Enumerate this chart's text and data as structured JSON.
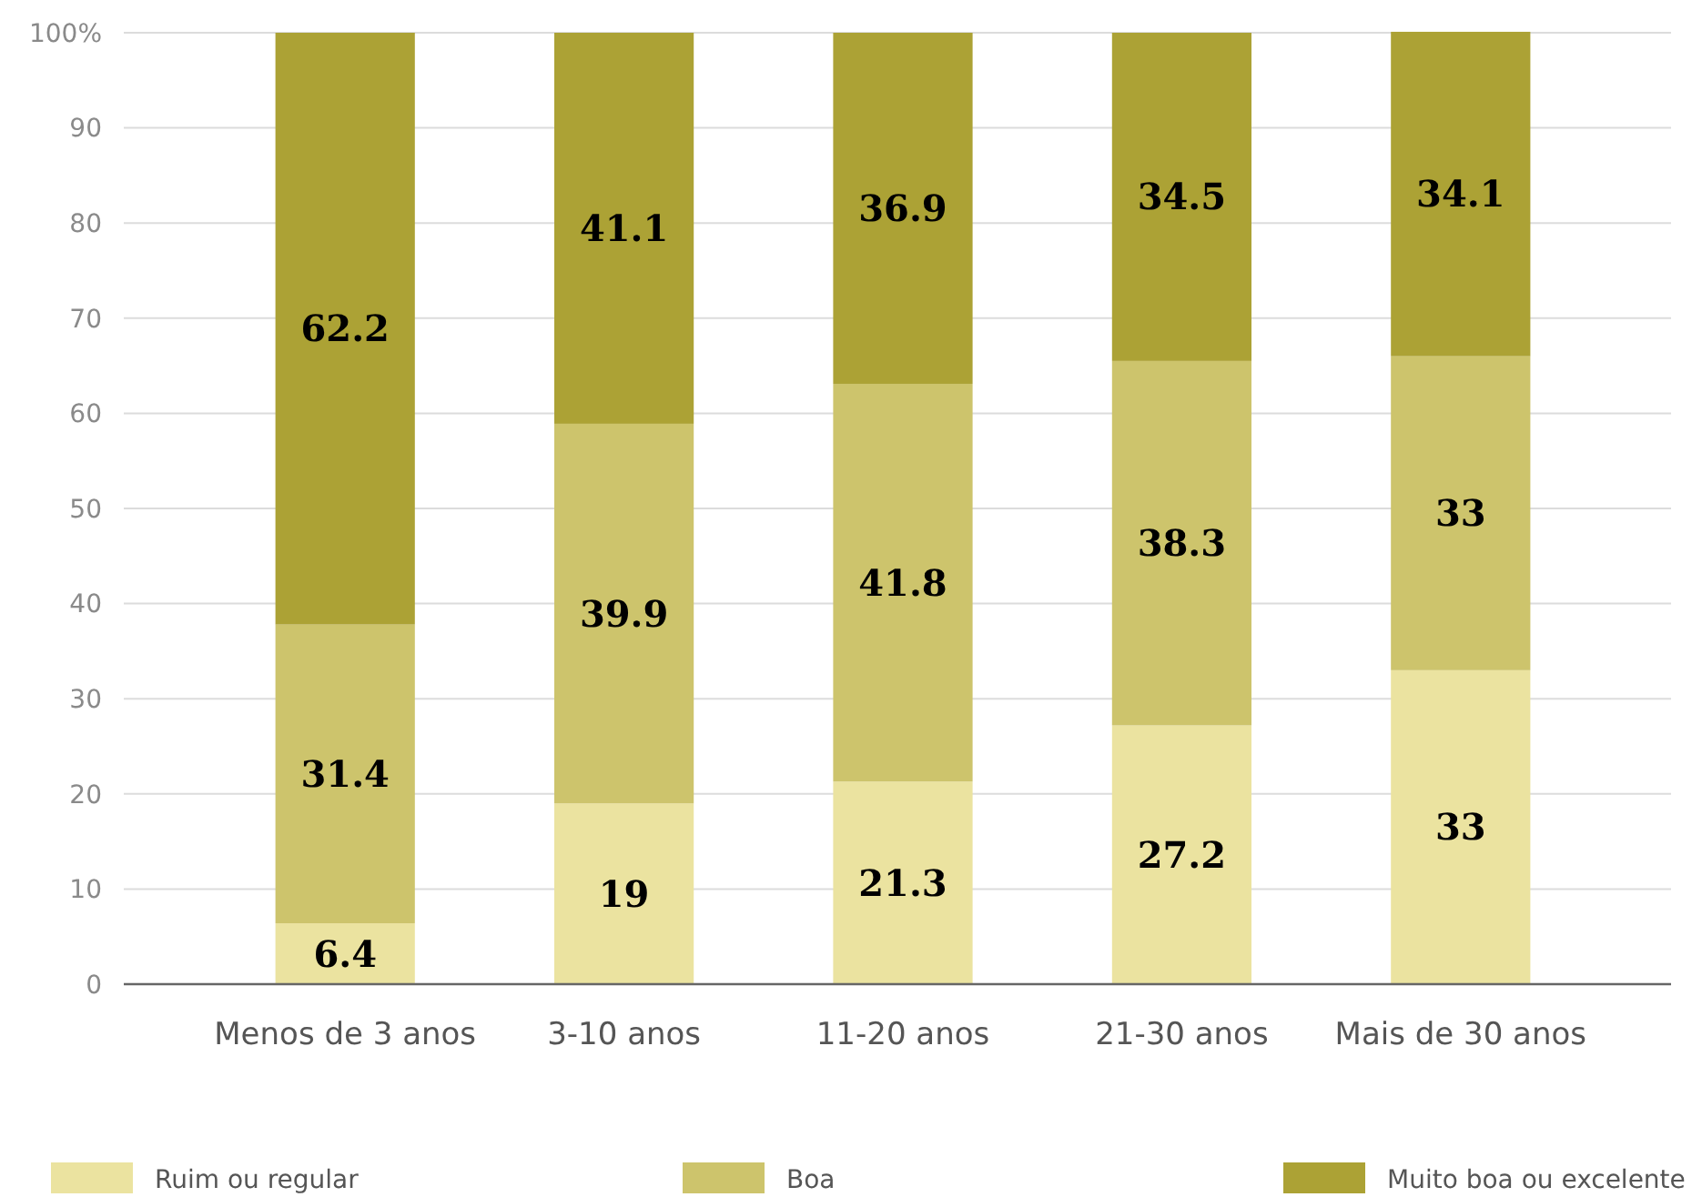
{
  "chart_data": {
    "type": "bar",
    "stacked": true,
    "categories": [
      "Menos de 3 anos",
      "3-10 anos",
      "11-20 anos",
      "21-30 anos",
      "Mais de 30 anos"
    ],
    "series": [
      {
        "name": "Ruim ou regular",
        "color": "#ebe3a0",
        "values": [
          6.4,
          19,
          21.3,
          27.2,
          33
        ]
      },
      {
        "name": "Boa",
        "color": "#cdc46c",
        "values": [
          31.4,
          39.9,
          41.8,
          38.3,
          33
        ]
      },
      {
        "name": "Muito boa ou excelente",
        "color": "#aca235",
        "values": [
          62.2,
          41.1,
          36.9,
          34.5,
          34.1
        ]
      }
    ],
    "ylim": [
      0,
      100
    ],
    "yticks": [
      0,
      10,
      20,
      30,
      40,
      50,
      60,
      70,
      80,
      90,
      {
        "value": 100,
        "label": "100%"
      }
    ],
    "grid": "y",
    "data_labels": true,
    "legend": "bottom"
  }
}
